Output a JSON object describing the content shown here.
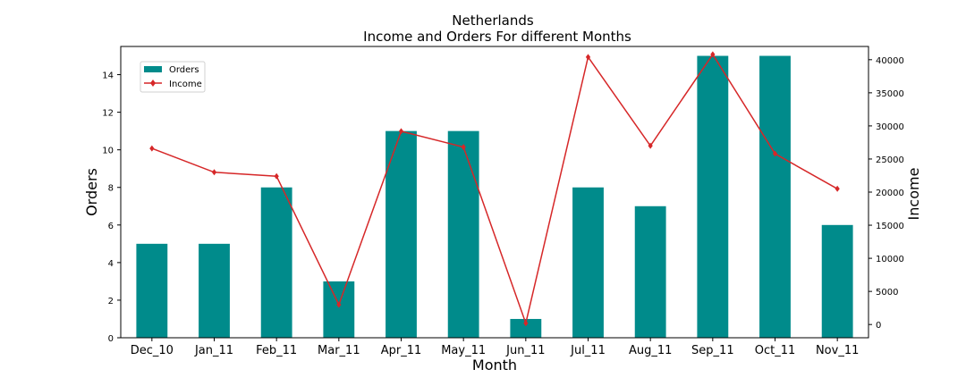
{
  "chart_data": {
    "type": "bar",
    "title": "Netherlands",
    "subtitle": "Income and Orders For different Months",
    "xlabel": "Month",
    "ylabel": "Orders",
    "y2label": "Income",
    "categories": [
      "Dec_10",
      "Jan_11",
      "Feb_11",
      "Mar_11",
      "Apr_11",
      "May_11",
      "Jun_11",
      "Jul_11",
      "Aug_11",
      "Sep_11",
      "Oct_11",
      "Nov_11"
    ],
    "series": [
      {
        "name": "Orders",
        "type": "bar",
        "axis": "left",
        "color": "#008b8b",
        "values": [
          5,
          5,
          8,
          3,
          11,
          11,
          1,
          8,
          7,
          15,
          15,
          6
        ]
      },
      {
        "name": "Income",
        "type": "line",
        "axis": "right",
        "marker": "diamond",
        "color": "#d62728",
        "values": [
          26600,
          23000,
          22400,
          3000,
          29200,
          26800,
          200,
          40400,
          27000,
          40800,
          25800,
          20500
        ]
      }
    ],
    "ylim": [
      0,
      15.5
    ],
    "y_ticks": [
      0,
      2,
      4,
      6,
      8,
      10,
      12,
      14
    ],
    "y2lim": [
      -2000,
      42000
    ],
    "y2_ticks": [
      0,
      5000,
      10000,
      15000,
      20000,
      25000,
      30000,
      35000,
      40000
    ],
    "legend_position": "top-left",
    "grid": false
  }
}
